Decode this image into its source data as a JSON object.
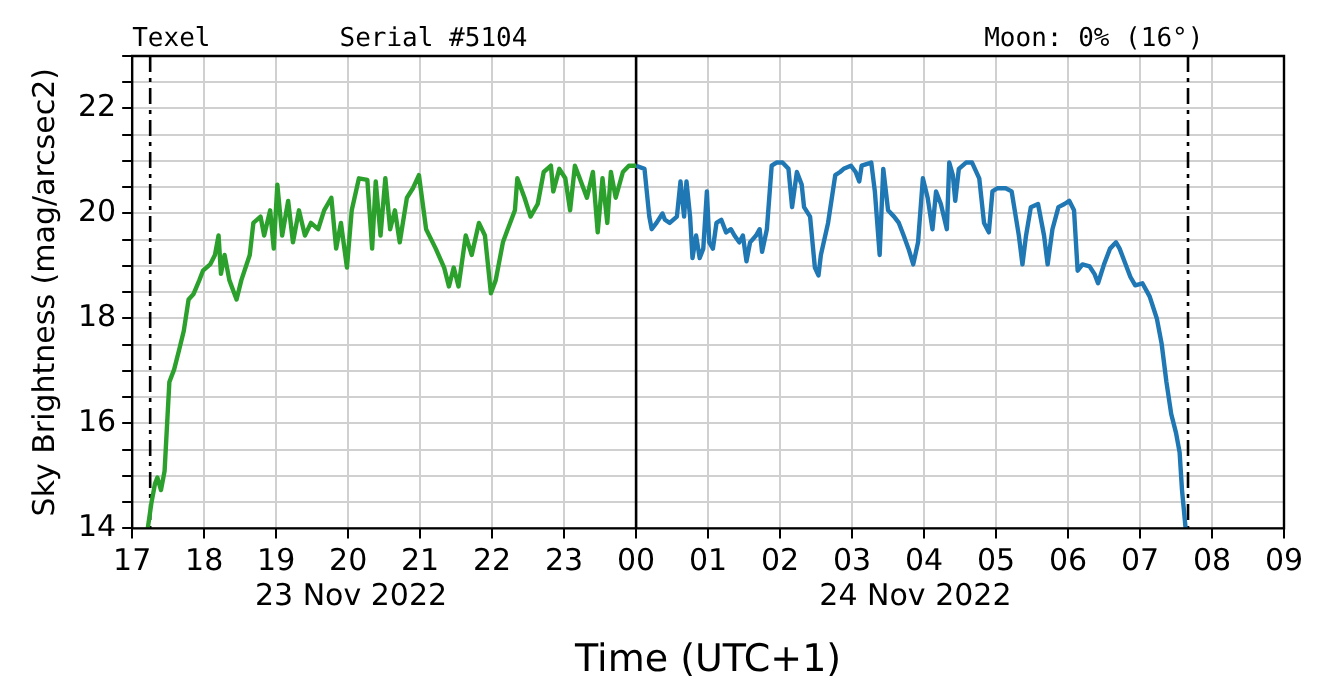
{
  "chart_data": {
    "type": "line",
    "xlabel": "Time (UTC+1)",
    "ylabel": "Sky Brightness (mag/arcsec2)",
    "annotations": [
      "Texel",
      "Serial #5104",
      "Moon: 0% (16°)",
      "23 Nov 2022",
      "24 Nov 2022"
    ],
    "xlim": [
      "2022-11-23T17:00",
      "2022-11-24T09:00"
    ],
    "xticks": [
      {
        "value": "2022-11-23T17:00",
        "label": "17"
      },
      {
        "value": "2022-11-23T18:00",
        "label": "18"
      },
      {
        "value": "2022-11-23T19:00",
        "label": "19"
      },
      {
        "value": "2022-11-23T20:00",
        "label": "20"
      },
      {
        "value": "2022-11-23T21:00",
        "label": "21"
      },
      {
        "value": "2022-11-23T22:00",
        "label": "22"
      },
      {
        "value": "2022-11-23T23:00",
        "label": "23"
      },
      {
        "value": "2022-11-24T00:00",
        "label": "00"
      },
      {
        "value": "2022-11-24T01:00",
        "label": "01"
      },
      {
        "value": "2022-11-24T02:00",
        "label": "02"
      },
      {
        "value": "2022-11-24T03:00",
        "label": "03"
      },
      {
        "value": "2022-11-24T04:00",
        "label": "04"
      },
      {
        "value": "2022-11-24T05:00",
        "label": "05"
      },
      {
        "value": "2022-11-24T06:00",
        "label": "06"
      },
      {
        "value": "2022-11-24T07:00",
        "label": "07"
      },
      {
        "value": "2022-11-24T08:00",
        "label": "08"
      },
      {
        "value": "2022-11-24T09:00",
        "label": "09"
      }
    ],
    "ylim": [
      14,
      23
    ],
    "yticks": [
      14,
      {
        "value": 14.5,
        "label": null
      },
      {
        "value": 15,
        "label": null
      },
      {
        "value": 15.5,
        "label": null
      },
      16,
      {
        "value": 16.5,
        "label": null
      },
      {
        "value": 17,
        "label": null
      },
      {
        "value": 17.5,
        "label": null
      },
      18,
      {
        "value": 18.5,
        "label": null
      },
      {
        "value": 19,
        "label": null
      },
      {
        "value": 19.5,
        "label": null
      },
      20,
      {
        "value": 20.5,
        "label": null
      },
      {
        "value": 21,
        "label": null
      },
      {
        "value": 21.5,
        "label": null
      },
      22,
      {
        "value": 22.5,
        "label": null
      },
      {
        "value": 23,
        "label": null
      }
    ],
    "grid": true,
    "ref_lines": [
      {
        "axis": "x",
        "value": "2022-11-23T17:15",
        "color": "#000000",
        "line_style": "dashed"
      },
      {
        "axis": "x",
        "value": "2022-11-24T00:00",
        "color": "#000000",
        "line_style": "solid"
      },
      {
        "axis": "x",
        "value": "2022-11-24T07:40",
        "color": "#000000",
        "line_style": "dashed"
      }
    ],
    "series": [
      {
        "color": "#2ca02c",
        "x": [
          "2022-11-23T17:13",
          "2022-11-23T17:16",
          "2022-11-23T17:19",
          "2022-11-23T17:21",
          "2022-11-23T17:24",
          "2022-11-23T17:27",
          "2022-11-23T17:31",
          "2022-11-23T17:35",
          "2022-11-23T17:39",
          "2022-11-23T17:43",
          "2022-11-23T17:47",
          "2022-11-23T17:51",
          "2022-11-23T17:56",
          "2022-11-23T17:59",
          "2022-11-23T18:05",
          "2022-11-23T18:09",
          "2022-11-23T18:12",
          "2022-11-23T18:14",
          "2022-11-23T18:17",
          "2022-11-23T18:21",
          "2022-11-23T18:27",
          "2022-11-23T18:31",
          "2022-11-23T18:38",
          "2022-11-23T18:41",
          "2022-11-23T18:47",
          "2022-11-23T18:50",
          "2022-11-23T18:55",
          "2022-11-23T18:58",
          "2022-11-23T19:01",
          "2022-11-23T19:05",
          "2022-11-23T19:10",
          "2022-11-23T19:14",
          "2022-11-23T19:19",
          "2022-11-23T19:24",
          "2022-11-23T19:29",
          "2022-11-23T19:35",
          "2022-11-23T19:40",
          "2022-11-23T19:46",
          "2022-11-23T19:50",
          "2022-11-23T19:54",
          "2022-11-23T19:59",
          "2022-11-23T20:03",
          "2022-11-23T20:09",
          "2022-11-23T20:16",
          "2022-11-23T20:20",
          "2022-11-23T20:23",
          "2022-11-23T20:27",
          "2022-11-23T20:31",
          "2022-11-23T20:35",
          "2022-11-23T20:39",
          "2022-11-23T20:43",
          "2022-11-23T20:49",
          "2022-11-23T20:54",
          "2022-11-23T20:59",
          "2022-11-23T21:05",
          "2022-11-23T21:13",
          "2022-11-23T21:20",
          "2022-11-23T21:24",
          "2022-11-23T21:28",
          "2022-11-23T21:32",
          "2022-11-23T21:38",
          "2022-11-23T21:43",
          "2022-11-23T21:49",
          "2022-11-23T21:54",
          "2022-11-23T21:59",
          "2022-11-23T22:03",
          "2022-11-23T22:09",
          "2022-11-23T22:13",
          "2022-11-23T22:19",
          "2022-11-23T22:21",
          "2022-11-23T22:27",
          "2022-11-23T22:32",
          "2022-11-23T22:38",
          "2022-11-23T22:43",
          "2022-11-23T22:49",
          "2022-11-23T22:51",
          "2022-11-23T22:56",
          "2022-11-23T23:01",
          "2022-11-23T23:05",
          "2022-11-23T23:09",
          "2022-11-23T23:13",
          "2022-11-23T23:19",
          "2022-11-23T23:24",
          "2022-11-23T23:28",
          "2022-11-23T23:32",
          "2022-11-23T23:36",
          "2022-11-23T23:39",
          "2022-11-23T23:43",
          "2022-11-23T23:49",
          "2022-11-23T23:54",
          "2022-11-23T23:58",
          "2022-11-24T00:00"
        ],
        "values": [
          14.0,
          14.48,
          14.85,
          14.97,
          14.73,
          15.09,
          16.79,
          17.03,
          17.39,
          17.76,
          18.36,
          18.46,
          18.73,
          18.91,
          19.03,
          19.21,
          19.58,
          18.85,
          19.21,
          18.73,
          18.36,
          18.73,
          19.21,
          19.82,
          19.94,
          19.58,
          20.06,
          19.33,
          20.55,
          19.58,
          20.24,
          19.45,
          20.06,
          19.58,
          19.82,
          19.7,
          20.06,
          20.3,
          19.33,
          19.82,
          18.97,
          20.06,
          20.67,
          20.64,
          19.33,
          20.61,
          19.58,
          20.67,
          19.7,
          20.06,
          19.45,
          20.3,
          20.48,
          20.73,
          19.7,
          19.33,
          18.97,
          18.61,
          18.97,
          18.61,
          19.58,
          19.21,
          19.82,
          19.58,
          18.48,
          18.73,
          19.45,
          19.7,
          20.06,
          20.67,
          20.3,
          19.94,
          20.18,
          20.79,
          20.91,
          20.42,
          20.85,
          20.67,
          20.06,
          20.91,
          20.67,
          20.3,
          20.79,
          19.64,
          20.67,
          19.82,
          20.79,
          20.3,
          20.79,
          20.91,
          20.91,
          20.91
        ]
      },
      {
        "color": "#1f77b4",
        "x": [
          "2022-11-24T00:00",
          "2022-11-24T00:07",
          "2022-11-24T00:11",
          "2022-11-24T00:13",
          "2022-11-24T00:17",
          "2022-11-24T00:22",
          "2022-11-24T00:24",
          "2022-11-24T00:28",
          "2022-11-24T00:34",
          "2022-11-24T00:37",
          "2022-11-24T00:40",
          "2022-11-24T00:42",
          "2022-11-24T00:45",
          "2022-11-24T00:47",
          "2022-11-24T00:50",
          "2022-11-24T00:53",
          "2022-11-24T00:56",
          "2022-11-24T00:59",
          "2022-11-24T01:01",
          "2022-11-24T01:04",
          "2022-11-24T01:07",
          "2022-11-24T01:11",
          "2022-11-24T01:15",
          "2022-11-24T01:19",
          "2022-11-24T01:22",
          "2022-11-24T01:26",
          "2022-11-24T01:29",
          "2022-11-24T01:32",
          "2022-11-24T01:35",
          "2022-11-24T01:40",
          "2022-11-24T01:43",
          "2022-11-24T01:45",
          "2022-11-24T01:49",
          "2022-11-24T01:53",
          "2022-11-24T01:57",
          "2022-11-24T02:02",
          "2022-11-24T02:07",
          "2022-11-24T02:10",
          "2022-11-24T02:14",
          "2022-11-24T02:18",
          "2022-11-24T02:20",
          "2022-11-24T02:25",
          "2022-11-24T02:29",
          "2022-11-24T02:32",
          "2022-11-24T02:34",
          "2022-11-24T02:40",
          "2022-11-24T02:46",
          "2022-11-24T02:50",
          "2022-11-24T02:53",
          "2022-11-24T02:59",
          "2022-11-24T03:03",
          "2022-11-24T03:06",
          "2022-11-24T03:08",
          "2022-11-24T03:16",
          "2022-11-24T03:19",
          "2022-11-24T03:23",
          "2022-11-24T03:26",
          "2022-11-24T03:30",
          "2022-11-24T03:35",
          "2022-11-24T03:39",
          "2022-11-24T03:43",
          "2022-11-24T03:47",
          "2022-11-24T03:51",
          "2022-11-24T03:55",
          "2022-11-24T03:59",
          "2022-11-24T04:03",
          "2022-11-24T04:07",
          "2022-11-24T04:10",
          "2022-11-24T04:14",
          "2022-11-24T04:19",
          "2022-11-24T04:21",
          "2022-11-24T04:24",
          "2022-11-24T04:26",
          "2022-11-24T04:29",
          "2022-11-24T04:35",
          "2022-11-24T04:40",
          "2022-11-24T04:46",
          "2022-11-24T04:50",
          "2022-11-24T04:54",
          "2022-11-24T04:57",
          "2022-11-24T05:01",
          "2022-11-24T05:08",
          "2022-11-24T05:13",
          "2022-11-24T05:19",
          "2022-11-24T05:22",
          "2022-11-24T05:25",
          "2022-11-24T05:29",
          "2022-11-24T05:35",
          "2022-11-24T05:40",
          "2022-11-24T05:43",
          "2022-11-24T05:47",
          "2022-11-24T05:52",
          "2022-11-24T05:57",
          "2022-11-24T06:01",
          "2022-11-24T06:05",
          "2022-11-24T06:08",
          "2022-11-24T06:12",
          "2022-11-24T06:18",
          "2022-11-24T06:22",
          "2022-11-24T06:25",
          "2022-11-24T06:30",
          "2022-11-24T06:35",
          "2022-11-24T06:40",
          "2022-11-24T06:43",
          "2022-11-24T06:47",
          "2022-11-24T06:52",
          "2022-11-24T06:56",
          "2022-11-24T07:02",
          "2022-11-24T07:08",
          "2022-11-24T07:14",
          "2022-11-24T07:18",
          "2022-11-24T07:22",
          "2022-11-24T07:26",
          "2022-11-24T07:30",
          "2022-11-24T07:33",
          "2022-11-24T07:35",
          "2022-11-24T07:38"
        ],
        "values": [
          20.91,
          20.85,
          19.94,
          19.7,
          19.82,
          20.0,
          19.88,
          19.82,
          19.94,
          20.61,
          19.94,
          20.61,
          19.94,
          19.15,
          19.58,
          19.15,
          19.33,
          20.42,
          19.45,
          19.33,
          19.82,
          19.88,
          19.64,
          19.7,
          19.58,
          19.45,
          19.58,
          19.09,
          19.45,
          19.58,
          19.7,
          19.27,
          19.7,
          20.91,
          20.97,
          20.97,
          20.85,
          20.12,
          20.79,
          20.55,
          20.12,
          19.94,
          18.97,
          18.82,
          19.21,
          19.82,
          20.73,
          20.79,
          20.85,
          20.91,
          20.79,
          20.61,
          20.91,
          20.97,
          20.42,
          19.21,
          20.85,
          20.06,
          19.94,
          19.82,
          19.58,
          19.33,
          19.03,
          19.45,
          20.67,
          20.3,
          19.7,
          20.42,
          20.18,
          19.7,
          20.97,
          20.73,
          20.24,
          20.85,
          20.97,
          20.97,
          20.67,
          19.82,
          19.64,
          20.42,
          20.48,
          20.48,
          20.42,
          19.58,
          19.03,
          19.58,
          20.12,
          20.18,
          19.58,
          19.03,
          19.7,
          20.12,
          20.18,
          20.24,
          20.06,
          18.91,
          19.03,
          18.99,
          18.85,
          18.67,
          19.03,
          19.33,
          19.45,
          19.33,
          19.09,
          18.79,
          18.63,
          18.67,
          18.42,
          18.0,
          17.52,
          16.79,
          16.18,
          15.82,
          15.45,
          14.73,
          14.0
        ]
      }
    ]
  }
}
